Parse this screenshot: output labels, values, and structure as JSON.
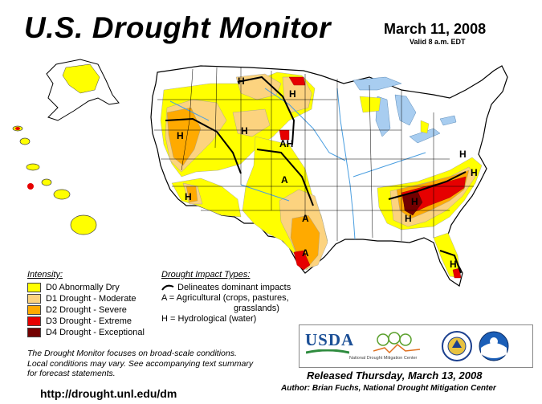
{
  "header": {
    "title": "U.S. Drought Monitor",
    "date": "March 11, 2008",
    "valid": "Valid 8 a.m. EDT"
  },
  "legend": {
    "intensity_heading": "Intensity:",
    "items": [
      {
        "label": "D0 Abnormally Dry",
        "color": "#ffff00"
      },
      {
        "label": "D1 Drought - Moderate",
        "color": "#fcd37f"
      },
      {
        "label": "D2 Drought - Severe",
        "color": "#ffaa00"
      },
      {
        "label": "D3 Drought - Extreme",
        "color": "#e60000"
      },
      {
        "label": "D4 Drought - Exceptional",
        "color": "#730000"
      }
    ],
    "impact_heading": "Drought Impact Types:",
    "impact_lines": [
      "Delineates dominant impacts",
      "A = Agricultural (crops, pastures,",
      "grasslands)",
      "H = Hydrological (water)"
    ]
  },
  "map_labels": {
    "hydrological": "H",
    "agricultural": "A",
    "combined": "AH"
  },
  "disclaimer": [
    "The Drought Monitor focuses on broad-scale conditions.",
    "Local conditions may vary. See accompanying text summary",
    "for forecast statements."
  ],
  "footer": {
    "url": "http://drought.unl.edu/dm",
    "released": "Released Thursday, March 13, 2008",
    "author": "Author: Brian Fuchs, National Drought Mitigation Center"
  },
  "logos": {
    "usda": "USDA",
    "ndmc": "National Drought Mitigation Center"
  },
  "colors": {
    "water": "#a8cdf0",
    "land": "#ffffff",
    "border": "#000000"
  }
}
